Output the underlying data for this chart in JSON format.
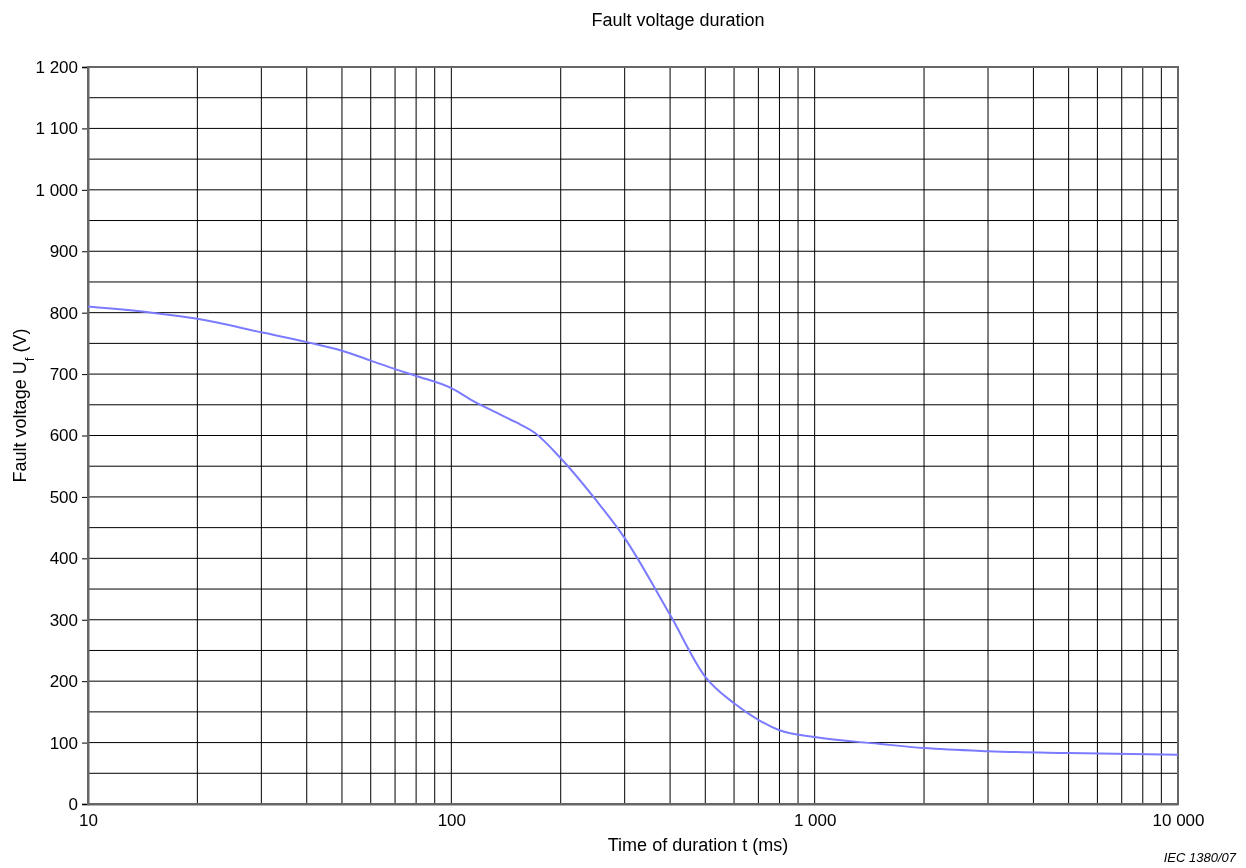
{
  "chart_data": {
    "type": "line",
    "title": "Fault voltage duration",
    "xlabel": "Time of duration t  (ms)",
    "ylabel": "Fault voltage U$_{f}$  (V)",
    "annotations": [
      "IEC  1380/07"
    ],
    "log": "x",
    "grid": true,
    "line_style": "solid",
    "marker": "none",
    "xlim": [
      10,
      10000
    ],
    "xticks": [
      {
        "value": 10,
        "label": "10"
      },
      {
        "value": 20,
        "label": null
      },
      {
        "value": 30,
        "label": null
      },
      {
        "value": 40,
        "label": null
      },
      {
        "value": 50,
        "label": null
      },
      {
        "value": 60,
        "label": null
      },
      {
        "value": 70,
        "label": null
      },
      {
        "value": 80,
        "label": null
      },
      {
        "value": 90,
        "label": null
      },
      {
        "value": 100,
        "label": "100"
      },
      {
        "value": 200,
        "label": null
      },
      {
        "value": 300,
        "label": null
      },
      {
        "value": 400,
        "label": null
      },
      {
        "value": 500,
        "label": null
      },
      {
        "value": 600,
        "label": null
      },
      {
        "value": 700,
        "label": null
      },
      {
        "value": 800,
        "label": null
      },
      {
        "value": 900,
        "label": null
      },
      {
        "value": 1000,
        "label": "1 000"
      },
      {
        "value": 2000,
        "label": null
      },
      {
        "value": 3000,
        "label": null
      },
      {
        "value": 4000,
        "label": null
      },
      {
        "value": 5000,
        "label": null
      },
      {
        "value": 6000,
        "label": null
      },
      {
        "value": 7000,
        "label": null
      },
      {
        "value": 8000,
        "label": null
      },
      {
        "value": 9000,
        "label": null
      },
      {
        "value": 10000,
        "label": "10 000"
      }
    ],
    "ylim": [
      0,
      1200
    ],
    "yticks": [
      0,
      {
        "value": 50,
        "label": null
      },
      100,
      {
        "value": 150,
        "label": null
      },
      200,
      {
        "value": 250,
        "label": null
      },
      300,
      {
        "value": 350,
        "label": null
      },
      400,
      {
        "value": 450,
        "label": null
      },
      500,
      {
        "value": 550,
        "label": null
      },
      600,
      {
        "value": 650,
        "label": null
      },
      700,
      {
        "value": 750,
        "label": null
      },
      800,
      {
        "value": 850,
        "label": null
      },
      900,
      {
        "value": 950,
        "label": null
      },
      {
        "value": 1000,
        "label": "1 000"
      },
      {
        "value": 1050,
        "label": null
      },
      {
        "value": 1100,
        "label": "1 100"
      },
      {
        "value": 1150,
        "label": null
      },
      {
        "value": 1200,
        "label": "1 200"
      }
    ],
    "x": [
      10,
      15,
      20,
      30,
      40,
      50,
      60,
      70,
      80,
      100,
      115,
      130,
      150,
      170,
      200,
      250,
      300,
      400,
      500,
      600,
      700,
      800,
      1000,
      1500,
      2000,
      3000,
      5000,
      10000
    ],
    "series": [
      {
        "color": "#7b7bff",
        "values": [
          810,
          800,
          790,
          768,
          752,
          738,
          722,
          708,
          697,
          677,
          656,
          640,
          622,
          604,
          563,
          495,
          433,
          308,
          207,
          164,
          137,
          120,
          109,
          98,
          91,
          86,
          83,
          80
        ]
      }
    ]
  }
}
